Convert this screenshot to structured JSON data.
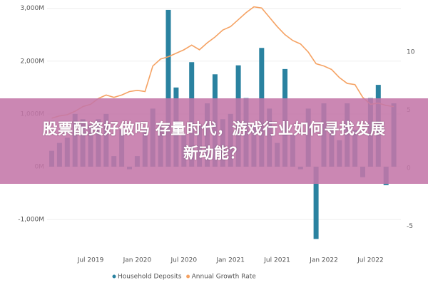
{
  "chart_data": {
    "type": "bar-line",
    "categories": [
      null,
      null,
      null,
      null,
      null,
      "Jul 2019",
      null,
      null,
      null,
      null,
      null,
      "Jan 2020",
      null,
      null,
      null,
      null,
      null,
      "Jul 2020",
      null,
      null,
      null,
      null,
      null,
      "Jan 2021",
      null,
      null,
      null,
      null,
      null,
      "Jul 2021",
      null,
      null,
      null,
      null,
      null,
      "Jan 2022",
      null,
      null,
      null,
      null,
      null,
      "Jul 2022",
      null,
      null,
      null
    ],
    "series": [
      {
        "name": "Household Deposits",
        "color": "#2a82a0",
        "values": [
          300,
          450,
          550,
          1000,
          900,
          800,
          900,
          1000,
          200,
          700,
          -50,
          200,
          700,
          1100,
          800,
          2970,
          1500,
          600,
          1980,
          800,
          1200,
          1750,
          900,
          1000,
          1920,
          1300,
          800,
          2250,
          1100,
          450,
          1850,
          600,
          -50,
          1100,
          -1370,
          1200,
          800,
          500,
          1200,
          700,
          -200,
          1300,
          1550,
          -350,
          1200
        ]
      },
      {
        "name": "Annual Growth Rate",
        "color": "#f5a263",
        "axis": "y2",
        "values": [
          4.3,
          4.5,
          4.6,
          4.9,
          5.3,
          5.5,
          6.0,
          6.3,
          6.1,
          6.3,
          6.6,
          6.7,
          6.6,
          8.8,
          9.4,
          9.6,
          9.9,
          10.2,
          10.6,
          10.2,
          10.8,
          11.3,
          11.9,
          12.2,
          12.8,
          13.4,
          13.9,
          13.8,
          13.0,
          12.2,
          11.5,
          11.0,
          10.7,
          10.0,
          9.0,
          8.8,
          8.5,
          7.8,
          7.3,
          7.2,
          6.1,
          5.5,
          5.6,
          5.4,
          5.3
        ]
      }
    ],
    "ylim": [
      -1500,
      3050
    ],
    "yticks": [
      {
        "value": -1000,
        "label": "-1,000M"
      },
      {
        "value": 0,
        "label": "0M"
      },
      {
        "value": 1000,
        "label": "1,000M"
      },
      {
        "value": 2000,
        "label": "2,000M"
      },
      {
        "value": 3000,
        "label": "3,000M"
      }
    ],
    "y2lim": [
      -6.7,
      14
    ],
    "y2ticks": [
      -5,
      0,
      5,
      10
    ],
    "grid": true,
    "legend": "bottom"
  },
  "headline": [
    "股票配资好做吗 存量时代，游戏行业如何寻找发展",
    "新动能？"
  ]
}
